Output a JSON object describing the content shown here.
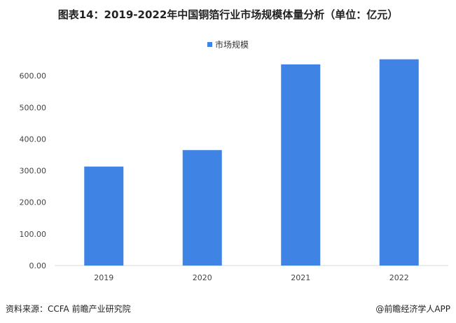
{
  "header": {
    "title": "图表14：2019-2022年中国铜箔行业市场规模体量分析（单位：亿元）"
  },
  "footer": {
    "source": "资料来源：CCFA 前瞻产业研究院",
    "credit": "@前瞻经济学人APP"
  },
  "colors": {
    "bar": "#3f84e5",
    "axis": "#d9d9d9",
    "text": "#444444"
  },
  "chart_data": {
    "type": "bar",
    "title": "图表14：2019-2022年中国铜箔行业市场规模体量分析（单位：亿元）",
    "categories": [
      "2019",
      "2020",
      "2021",
      "2022"
    ],
    "series": [
      {
        "name": "市场规模",
        "values": [
          313,
          365,
          636,
          652
        ]
      }
    ],
    "yticks": [
      "0.00",
      "100.00",
      "200.00",
      "300.00",
      "400.00",
      "500.00",
      "600.00"
    ],
    "ylim": [
      0,
      680
    ],
    "grid": false,
    "legend": "top-center"
  }
}
